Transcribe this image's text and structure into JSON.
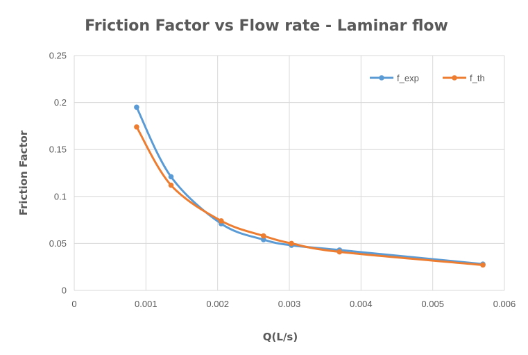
{
  "chart_data": {
    "type": "line",
    "title": "Friction Factor vs Flow rate - Laminar flow",
    "xlabel": "Q(L/s)",
    "ylabel": "Friction Factor",
    "xlim": [
      0,
      0.006
    ],
    "ylim": [
      0,
      0.25
    ],
    "x_ticks": [
      "0",
      "0.001",
      "0.002",
      "0.003",
      "0.004",
      "0.005",
      "0.006"
    ],
    "y_ticks": [
      "0",
      "0.05",
      "0.1",
      "0.15",
      "0.2",
      "0.25"
    ],
    "grid": true,
    "legend_position": "top-right",
    "series": [
      {
        "name": "f_exp",
        "color": "#5b9bd5",
        "points": [
          [
            0.00087,
            0.195
          ],
          [
            0.00135,
            0.121
          ],
          [
            0.00205,
            0.071
          ],
          [
            0.00264,
            0.054
          ],
          [
            0.00303,
            0.048
          ],
          [
            0.0037,
            0.043
          ],
          [
            0.0057,
            0.028
          ]
        ]
      },
      {
        "name": "f_th",
        "color": "#ed7d31",
        "points": [
          [
            0.00087,
            0.174
          ],
          [
            0.00135,
            0.112
          ],
          [
            0.00205,
            0.074
          ],
          [
            0.00264,
            0.058
          ],
          [
            0.00303,
            0.05
          ],
          [
            0.0037,
            0.041
          ],
          [
            0.0057,
            0.027
          ]
        ]
      }
    ]
  }
}
